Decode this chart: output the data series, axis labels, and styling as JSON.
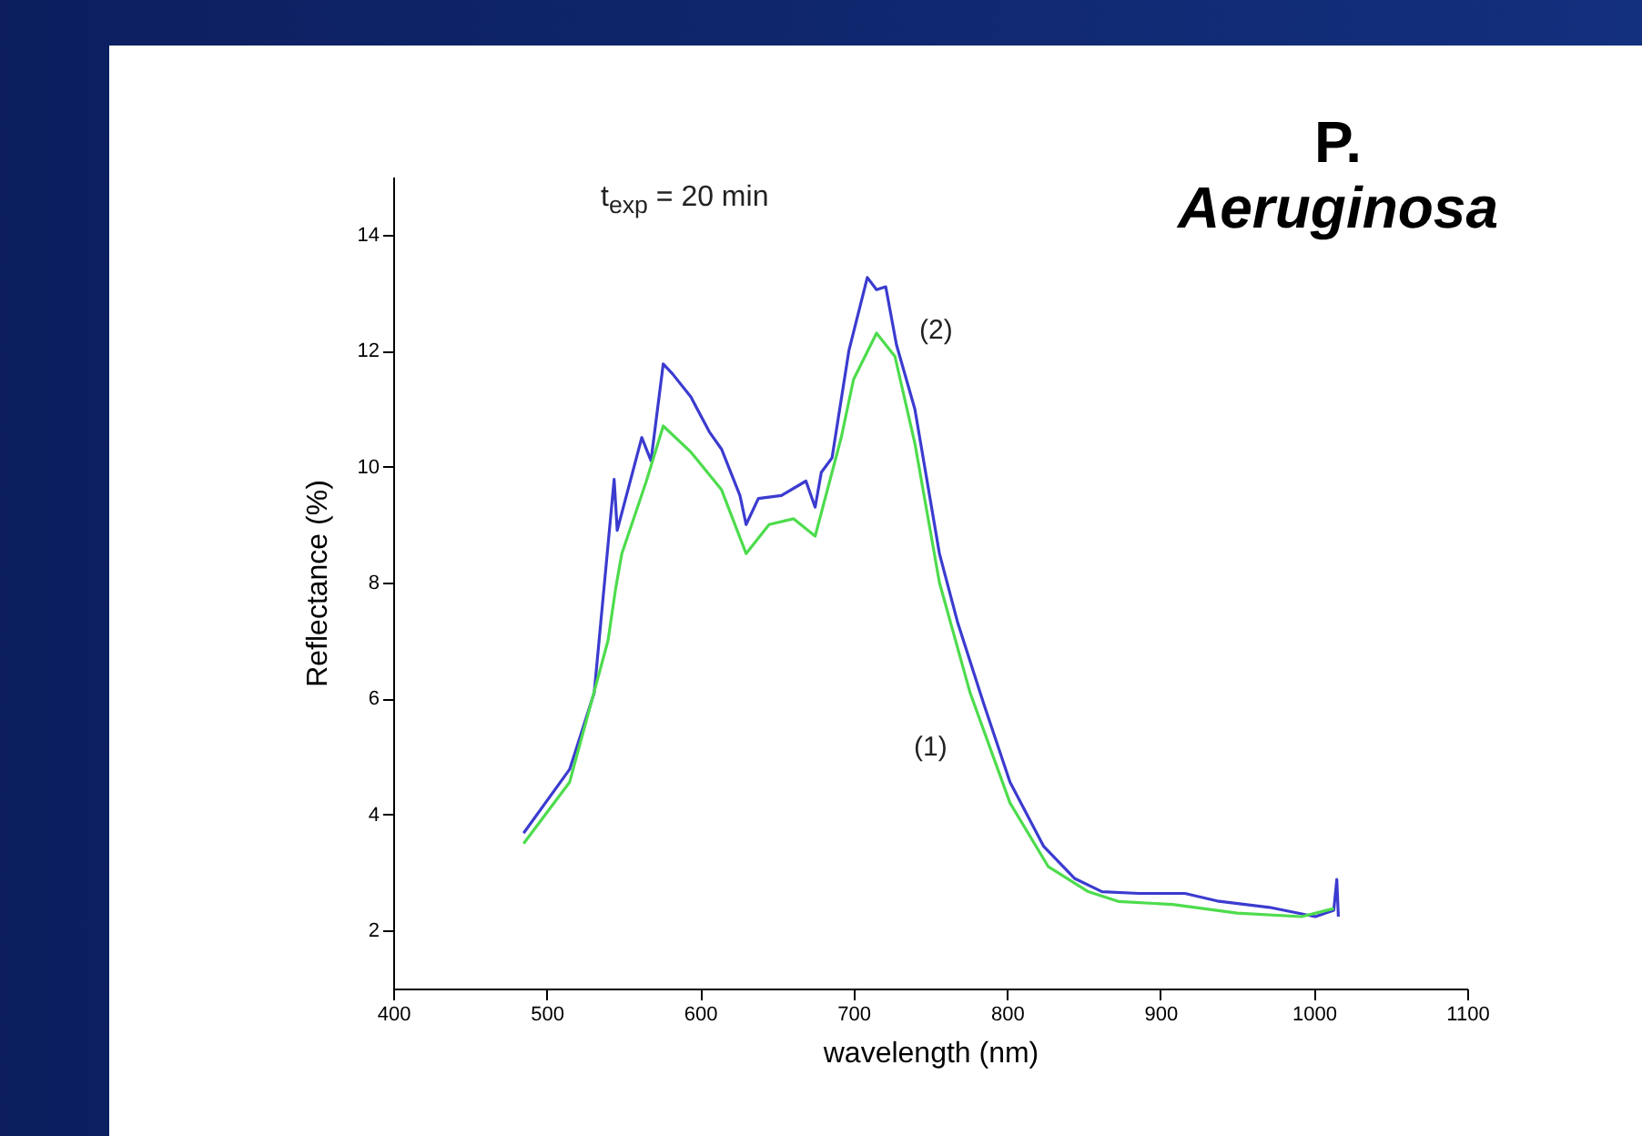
{
  "chart_data": {
    "type": "line",
    "title": "P. Aeruginosa",
    "xlabel": "wavelength (nm)",
    "ylabel": "Reflectance (%)",
    "xlim": [
      400,
      1100
    ],
    "xticks": [
      400,
      500,
      600,
      700,
      800,
      900,
      1000,
      1100
    ],
    "ylim": [
      1,
      15
    ],
    "yticks": [
      2,
      4,
      6,
      8,
      10,
      12,
      14
    ],
    "grid": false,
    "annotations": [
      "t$_{exp}$ = 20 min"
    ],
    "series": [
      {
        "name": "(2)",
        "color": "#3b3bd0",
        "x": [
          485,
          515,
          531,
          544,
          546,
          562,
          568,
          576,
          582,
          594,
          606,
          614,
          626,
          630,
          638,
          653,
          669,
          675,
          679,
          686,
          697,
          709,
          715,
          721,
          728,
          740,
          756,
          768,
          785,
          802,
          824,
          844,
          862,
          886,
          916,
          937,
          971,
          1001,
          1013,
          1015,
          1016
        ],
        "values": [
          3.68,
          4.78,
          6.1,
          9.78,
          8.9,
          10.5,
          10.1,
          11.77,
          11.6,
          11.2,
          10.6,
          10.3,
          9.5,
          9.0,
          9.45,
          9.5,
          9.75,
          9.3,
          9.9,
          10.15,
          12.0,
          13.26,
          13.05,
          13.1,
          12.1,
          10.99,
          8.5,
          7.3,
          5.9,
          4.56,
          3.45,
          2.9,
          2.67,
          2.64,
          2.64,
          2.51,
          2.4,
          2.24,
          2.35,
          2.88,
          2.24
        ]
      },
      {
        "name": "(1)",
        "color": "#4ddc4d",
        "x": [
          485,
          515,
          540,
          545,
          549,
          565,
          576,
          594,
          614,
          630,
          645,
          661,
          675,
          680,
          692,
          700,
          715,
          727,
          740,
          756,
          776,
          802,
          827,
          853,
          873,
          908,
          950,
          992,
          1013
        ],
        "values": [
          3.5,
          4.56,
          7.0,
          7.9,
          8.5,
          9.75,
          10.7,
          10.25,
          9.6,
          8.5,
          9.0,
          9.1,
          8.8,
          9.3,
          10.5,
          11.5,
          12.3,
          11.9,
          10.4,
          8.0,
          6.1,
          4.2,
          3.1,
          2.67,
          2.5,
          2.45,
          2.3,
          2.24,
          2.38
        ]
      }
    ]
  }
}
